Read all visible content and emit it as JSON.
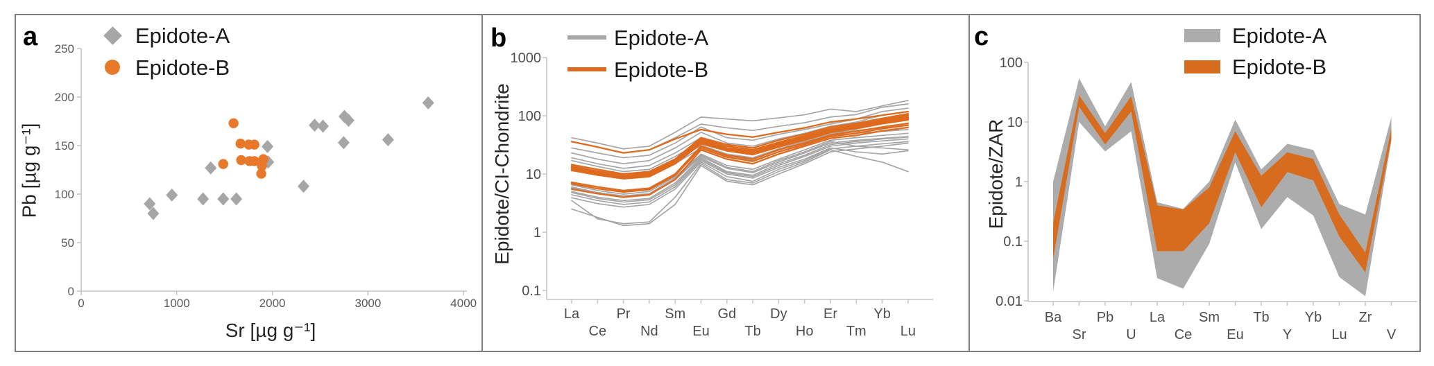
{
  "chart_data": [
    {
      "panel": "a",
      "type": "scatter",
      "xlabel": "Sr [µg g⁻¹]",
      "ylabel": "Pb [µg g⁻¹]",
      "xlim": [
        0,
        4000
      ],
      "ylim": [
        0,
        250
      ],
      "x_ticks": [
        0,
        1000,
        2000,
        3000,
        4000
      ],
      "y_ticks": [
        0,
        50,
        100,
        150,
        200,
        250
      ],
      "grid": false,
      "legend_position": "top-left-inside",
      "legend": [
        {
          "label": "Epidote-A",
          "marker": "diamond",
          "color": "#A6A6A6"
        },
        {
          "label": "Epidote-B",
          "marker": "circle",
          "color": "#E8792B"
        }
      ],
      "series": [
        {
          "name": "Epidote-A",
          "marker": "diamond",
          "color": "#A6A6A6",
          "points": [
            [
              717,
              90
            ],
            [
              754,
              80
            ],
            [
              949,
              99
            ],
            [
              1275,
              95
            ],
            [
              1486,
              95
            ],
            [
              1623,
              95
            ],
            [
              1355,
              127
            ],
            [
              1949,
              149
            ],
            [
              1957,
              133
            ],
            [
              2326,
              108
            ],
            [
              2442,
              171
            ],
            [
              2529,
              170
            ],
            [
              2754,
              180
            ],
            [
              2797,
              176
            ],
            [
              2746,
              153
            ],
            [
              3210,
              156
            ],
            [
              3630,
              194
            ]
          ]
        },
        {
          "name": "Epidote-B",
          "marker": "circle",
          "color": "#E8792B",
          "points": [
            [
              1594,
              173
            ],
            [
              1667,
              152
            ],
            [
              1754,
              151
            ],
            [
              1812,
              151
            ],
            [
              1674,
              135
            ],
            [
              1761,
              134
            ],
            [
              1812,
              134
            ],
            [
              1906,
              136
            ],
            [
              1486,
              131
            ],
            [
              1891,
              129
            ],
            [
              1884,
              121
            ]
          ]
        }
      ]
    },
    {
      "panel": "b",
      "type": "line",
      "yscale": "log",
      "ylabel": "Epidote/CI-Chondrite",
      "ylim": [
        0.1,
        1000
      ],
      "y_ticks": [
        "1000",
        "100",
        "10",
        "1",
        "0.1"
      ],
      "categories": [
        "La",
        "Ce",
        "Pr",
        "Nd",
        "Sm",
        "Eu",
        "Gd",
        "Tb",
        "Dy",
        "Ho",
        "Er",
        "Tm",
        "Yb",
        "Lu"
      ],
      "grid": false,
      "legend_position": "top-left-inside",
      "legend": [
        {
          "label": "Epidote-A",
          "color": "#A6A6A6"
        },
        {
          "label": "Epidote-B",
          "color": "#DE6A1E"
        }
      ],
      "series": [
        {
          "name": "Epidote-A",
          "color": "#A6A6A6",
          "width": 1.7,
          "lines": [
            [
              42,
              34,
              27,
              30,
              52,
              95,
              88,
              82,
              92,
              104,
              130,
              118,
              148,
              183
            ],
            [
              36,
              29,
              23,
              26,
              42,
              72,
              62,
              56,
              66,
              76,
              95,
              105,
              140,
              160
            ],
            [
              28,
              23,
              19,
              21,
              34,
              64,
              42,
              38,
              48,
              58,
              72,
              88,
              118,
              135
            ],
            [
              23,
              18,
              15,
              17,
              28,
              52,
              34,
              30,
              40,
              50,
              66,
              78,
              102,
              118
            ],
            [
              19,
              15,
              12.5,
              14,
              23,
              42,
              28,
              25,
              34,
              44,
              58,
              70,
              90,
              103
            ],
            [
              17,
              13.5,
              11,
              12,
              20,
              36,
              25,
              22,
              30,
              40,
              54,
              64,
              80,
              90
            ],
            [
              14,
              11,
              9.5,
              10.5,
              17,
              31,
              22,
              19,
              27,
              36,
              50,
              56,
              62,
              68
            ],
            [
              12.5,
              10,
              8.5,
              9.5,
              15,
              28,
              20,
              17,
              24,
              32,
              46,
              50,
              54,
              58
            ],
            [
              6.5,
              5.2,
              4.5,
              5,
              9,
              22,
              14,
              12,
              18,
              26,
              38,
              42,
              46,
              50
            ],
            [
              5.8,
              4.6,
              4,
              4.4,
              8,
              20,
              12.5,
              10.5,
              16,
              23,
              34,
              38,
              41,
              44
            ],
            [
              4.8,
              3.8,
              3.3,
              3.6,
              6.5,
              18,
              10.5,
              9,
              14,
              20,
              30,
              34,
              37,
              40
            ],
            [
              3.9,
              3.1,
              2.7,
              3,
              5.5,
              16,
              9,
              7.5,
              12,
              17,
              27,
              30,
              33,
              36
            ],
            [
              6,
              4.8,
              4.2,
              4.6,
              8.5,
              21,
              13,
              11,
              17,
              24,
              36,
              30,
              28,
              26
            ],
            [
              5,
              4,
              3.5,
              3.8,
              7,
              19,
              11,
              9.5,
              15,
              21,
              32,
              36,
              40,
              43
            ],
            [
              4.4,
              3.5,
              3,
              3.3,
              6,
              17,
              10,
              8.5,
              13,
              18,
              28,
              24,
              22,
              25
            ],
            [
              3.5,
              1.7,
              1.4,
              1.5,
              4,
              15,
              8,
              7,
              11,
              16,
              26,
              20,
              16,
              11
            ],
            [
              2.5,
              1.8,
              1.3,
              1.4,
              3,
              14,
              7.5,
              6.5,
              10,
              15,
              24,
              27,
              30,
              34
            ]
          ]
        },
        {
          "name": "Epidote-B",
          "color": "#DE6A1E",
          "width": 2.3,
          "lines": [
            [
              36,
              29,
              23,
              26,
              40,
              58,
              48,
              43,
              52,
              62,
              78,
              88,
              102,
              118
            ],
            [
              14.5,
              12,
              10,
              11,
              18,
              42,
              32,
              28,
              38,
              48,
              64,
              74,
              90,
              108
            ],
            [
              13.5,
              11.2,
              9.5,
              10.5,
              17,
              40,
              30,
              26,
              35,
              45,
              60,
              70,
              86,
              102
            ],
            [
              13,
              10.8,
              9.2,
              10,
              16.5,
              38,
              28,
              24.5,
              33,
              43,
              58,
              67,
              82,
              97
            ],
            [
              12.5,
              10.4,
              8.9,
              9.7,
              16,
              36,
              27,
              23.5,
              32,
              41,
              56,
              64,
              79,
              93
            ],
            [
              12,
              10,
              8.6,
              9.4,
              15.5,
              35,
              26,
              22.5,
              31,
              40,
              54,
              62,
              76,
              89
            ],
            [
              11.5,
              9.6,
              8.3,
              9,
              15,
              33,
              25,
              21.5,
              29,
              38,
              52,
              60,
              73,
              85
            ],
            [
              7.2,
              6,
              5.2,
              5.7,
              10,
              30,
              21,
              18,
              26,
              34,
              47,
              54,
              64,
              74
            ],
            [
              6.8,
              5.6,
              4.9,
              5.4,
              9.5,
              28,
              19.5,
              16.5,
              24,
              32,
              44,
              50,
              60,
              69
            ],
            [
              5.5,
              4.6,
              4,
              4.4,
              8,
              26,
              18,
              15,
              22,
              30,
              41,
              46,
              55,
              63
            ]
          ]
        }
      ]
    },
    {
      "panel": "c",
      "type": "area",
      "yscale": "log",
      "ylabel": "Epidote/ZAR",
      "ylim": [
        0.01,
        100
      ],
      "y_ticks": [
        "100",
        "10",
        "1",
        "0.1",
        "0.01"
      ],
      "categories": [
        "Ba",
        "Sr",
        "Pb",
        "U",
        "La",
        "Ce",
        "Sm",
        "Eu",
        "Tb",
        "Y",
        "Yb",
        "Lu",
        "Zr",
        "V"
      ],
      "grid": false,
      "legend_position": "top-right-inside",
      "legend": [
        {
          "label": "Epidote-A",
          "color": "#ACACAC"
        },
        {
          "label": "Epidote-B",
          "color": "#D86C1E"
        }
      ],
      "bands": [
        {
          "name": "Epidote-A",
          "color": "#ACACAC",
          "max": [
            1.0,
            54,
            8.5,
            47,
            0.45,
            0.35,
            1.0,
            11,
            1.6,
            4.3,
            3.4,
            0.42,
            0.28,
            12
          ],
          "min": [
            0.014,
            10,
            3.2,
            7,
            0.024,
            0.016,
            0.09,
            2.1,
            0.16,
            0.55,
            0.27,
            0.025,
            0.012,
            4.8
          ]
        },
        {
          "name": "Epidote-B",
          "color": "#D86C1E",
          "max": [
            0.2,
            28,
            6.5,
            27,
            0.4,
            0.34,
            0.8,
            7,
            1.25,
            3.1,
            2.4,
            0.28,
            0.065,
            7.8
          ],
          "min": [
            0.05,
            18,
            4.2,
            15,
            0.068,
            0.068,
            0.2,
            3.1,
            0.37,
            1.45,
            1.05,
            0.12,
            0.03,
            5.2
          ]
        }
      ]
    }
  ]
}
